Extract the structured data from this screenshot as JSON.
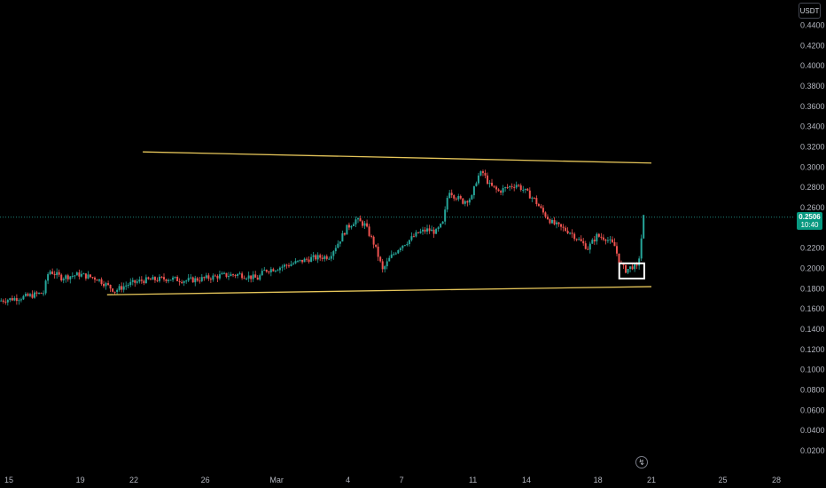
{
  "currency": "USDT",
  "last_price": {
    "value": "0.2506",
    "countdown": "10:40"
  },
  "icons": {
    "replay": "lightning-bolt-icon"
  },
  "colors": {
    "background": "#000000",
    "up": "#26a69a",
    "down": "#ef5350",
    "trendline": "#e6c65a",
    "highlight_box": "#ffffff",
    "price_tag": "#089981"
  },
  "chart_data": {
    "type": "candlestick",
    "title": "",
    "xlabel": "",
    "ylabel": "",
    "ylim": [
      0.0,
      0.455
    ],
    "y_ticks": [
      "0.4400",
      "0.4200",
      "0.4000",
      "0.3800",
      "0.3600",
      "0.3400",
      "0.3200",
      "0.3000",
      "0.2800",
      "0.2600",
      "0.2200",
      "0.2000",
      "0.1800",
      "0.1600",
      "0.1400",
      "0.1200",
      "0.1000",
      "0.0800",
      "0.0600",
      "0.0400",
      "0.0200"
    ],
    "x_ticks": [
      {
        "label": "15",
        "day": 15
      },
      {
        "label": "19",
        "day": 19
      },
      {
        "label": "22",
        "day": 22
      },
      {
        "label": "26",
        "day": 26
      },
      {
        "label": "Mar",
        "day": 30
      },
      {
        "label": "4",
        "day": 34
      },
      {
        "label": "7",
        "day": 37
      },
      {
        "label": "11",
        "day": 41
      },
      {
        "label": "14",
        "day": 44
      },
      {
        "label": "18",
        "day": 48
      },
      {
        "label": "21",
        "day": 51
      },
      {
        "label": "25",
        "day": 55
      },
      {
        "label": "28",
        "day": 58
      }
    ],
    "price_path": [
      [
        14.5,
        0.168
      ],
      [
        16.0,
        0.172
      ],
      [
        17.0,
        0.176
      ],
      [
        17.3,
        0.198
      ],
      [
        18.0,
        0.191
      ],
      [
        19.0,
        0.194
      ],
      [
        20.0,
        0.19
      ],
      [
        21.0,
        0.178
      ],
      [
        21.7,
        0.184
      ],
      [
        22.5,
        0.188
      ],
      [
        24.0,
        0.19
      ],
      [
        25.0,
        0.188
      ],
      [
        26.0,
        0.19
      ],
      [
        27.0,
        0.193
      ],
      [
        28.0,
        0.194
      ],
      [
        29.0,
        0.19
      ],
      [
        29.4,
        0.198
      ],
      [
        30.0,
        0.2
      ],
      [
        31.0,
        0.205
      ],
      [
        32.0,
        0.21
      ],
      [
        33.0,
        0.212
      ],
      [
        33.5,
        0.225
      ],
      [
        34.0,
        0.24
      ],
      [
        34.5,
        0.248
      ],
      [
        35.0,
        0.243
      ],
      [
        35.5,
        0.225
      ],
      [
        35.8,
        0.21
      ],
      [
        36.0,
        0.198
      ],
      [
        36.4,
        0.21
      ],
      [
        37.0,
        0.222
      ],
      [
        37.5,
        0.228
      ],
      [
        38.0,
        0.235
      ],
      [
        38.5,
        0.238
      ],
      [
        39.0,
        0.236
      ],
      [
        39.4,
        0.245
      ],
      [
        39.7,
        0.278
      ],
      [
        40.0,
        0.272
      ],
      [
        40.5,
        0.266
      ],
      [
        41.0,
        0.27
      ],
      [
        41.3,
        0.29
      ],
      [
        41.6,
        0.295
      ],
      [
        42.0,
        0.282
      ],
      [
        42.5,
        0.276
      ],
      [
        43.0,
        0.28
      ],
      [
        43.5,
        0.283
      ],
      [
        44.0,
        0.276
      ],
      [
        44.5,
        0.268
      ],
      [
        45.0,
        0.255
      ],
      [
        45.5,
        0.245
      ],
      [
        46.0,
        0.24
      ],
      [
        46.5,
        0.236
      ],
      [
        47.0,
        0.228
      ],
      [
        47.5,
        0.22
      ],
      [
        48.0,
        0.232
      ],
      [
        48.5,
        0.23
      ],
      [
        49.0,
        0.222
      ],
      [
        49.3,
        0.205
      ],
      [
        49.6,
        0.198
      ],
      [
        50.0,
        0.202
      ],
      [
        50.3,
        0.2
      ],
      [
        50.5,
        0.23
      ],
      [
        50.6,
        0.2506
      ]
    ],
    "annotations": [
      {
        "type": "trendline",
        "name": "upper",
        "from": [
          22.5,
          0.315
        ],
        "to": [
          51.0,
          0.304
        ]
      },
      {
        "type": "trendline",
        "name": "lower",
        "from": [
          20.5,
          0.174
        ],
        "to": [
          51.0,
          0.182
        ]
      },
      {
        "type": "box",
        "name": "highlight",
        "x_range": [
          49.2,
          50.6
        ],
        "y_range": [
          0.19,
          0.205
        ]
      },
      {
        "type": "hline",
        "name": "last-price",
        "y": 0.2506
      }
    ],
    "grid": false,
    "legend": "none"
  }
}
